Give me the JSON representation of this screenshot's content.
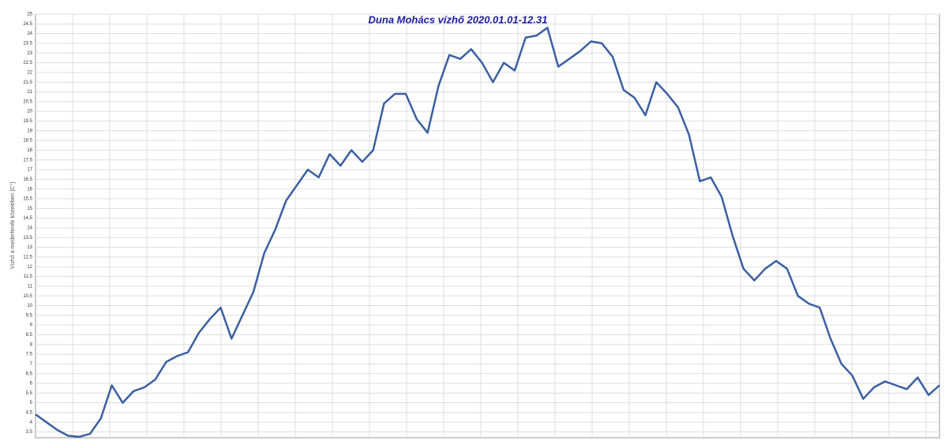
{
  "chart_data": {
    "type": "line",
    "title": "Duna Mohács vízhő 2020.01.01-12.31",
    "y_label": "Vízhő a mederfenék közelében [C°]",
    "ylim": [
      3.2,
      25
    ],
    "yticks": [
      3.5,
      4,
      4.5,
      5,
      5.5,
      6,
      6.5,
      7,
      7.5,
      8,
      8.5,
      9,
      9.5,
      10,
      10.5,
      11,
      11.5,
      12,
      12.5,
      13,
      13.5,
      14,
      14.5,
      15,
      15.5,
      16,
      16.5,
      17,
      17.5,
      18,
      18.5,
      19,
      19.5,
      20,
      20.5,
      21,
      21.5,
      22,
      22.5,
      23,
      23.5,
      24,
      24.5,
      25
    ],
    "grid": true,
    "color": "#3a5fa3",
    "values": [
      4.4,
      4.0,
      3.6,
      3.3,
      3.25,
      3.4,
      4.2,
      5.9,
      5.0,
      5.6,
      5.8,
      6.2,
      7.1,
      7.4,
      7.6,
      8.6,
      9.3,
      9.9,
      8.3,
      9.5,
      10.7,
      12.7,
      13.9,
      15.4,
      16.2,
      17.0,
      16.6,
      17.8,
      17.2,
      18.0,
      17.4,
      18.0,
      20.4,
      20.9,
      20.9,
      19.6,
      18.9,
      21.3,
      22.9,
      22.7,
      23.2,
      22.5,
      21.5,
      22.5,
      22.1,
      23.8,
      23.9,
      24.3,
      22.3,
      22.7,
      23.1,
      23.6,
      23.5,
      22.8,
      21.1,
      20.7,
      19.8,
      21.5,
      20.9,
      20.2,
      18.8,
      16.4,
      16.6,
      15.6,
      13.6,
      11.9,
      11.3,
      11.9,
      12.3,
      11.9,
      10.5,
      10.1,
      9.9,
      8.3,
      7.0,
      6.4,
      5.2,
      5.8,
      6.1,
      5.9,
      5.7,
      6.3,
      5.4,
      5.9
    ]
  }
}
